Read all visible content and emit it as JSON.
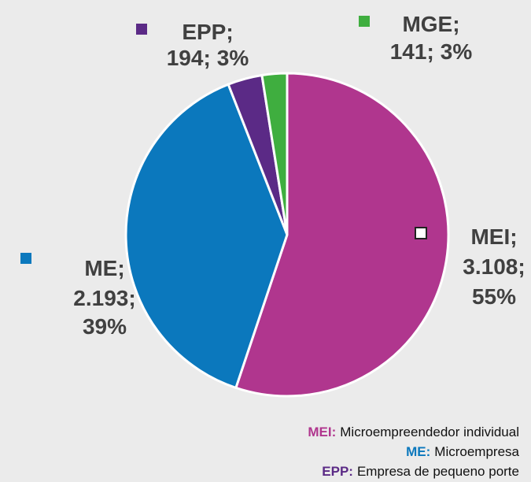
{
  "chart_data": {
    "type": "pie",
    "categories": [
      "MEI",
      "ME",
      "EPP",
      "MGE"
    ],
    "values": [
      3108,
      2193,
      194,
      141
    ],
    "value_labels": [
      "3.108",
      "2.193",
      "194",
      "141"
    ],
    "percents": [
      55,
      39,
      3,
      3
    ],
    "percent_labels": [
      "55%",
      "39%",
      "3%",
      "3%"
    ],
    "separator": ";",
    "colors": [
      "#b0368e",
      "#0b78bd",
      "#5b2a86",
      "#3fae3f"
    ],
    "legend_notes": [
      {
        "abbr": "MEI:",
        "text": "Microempreendedor individual"
      },
      {
        "abbr": "ME:",
        "text": "Microempresa"
      },
      {
        "abbr": "EPP:",
        "text": "Empresa de pequeno porte"
      }
    ]
  }
}
